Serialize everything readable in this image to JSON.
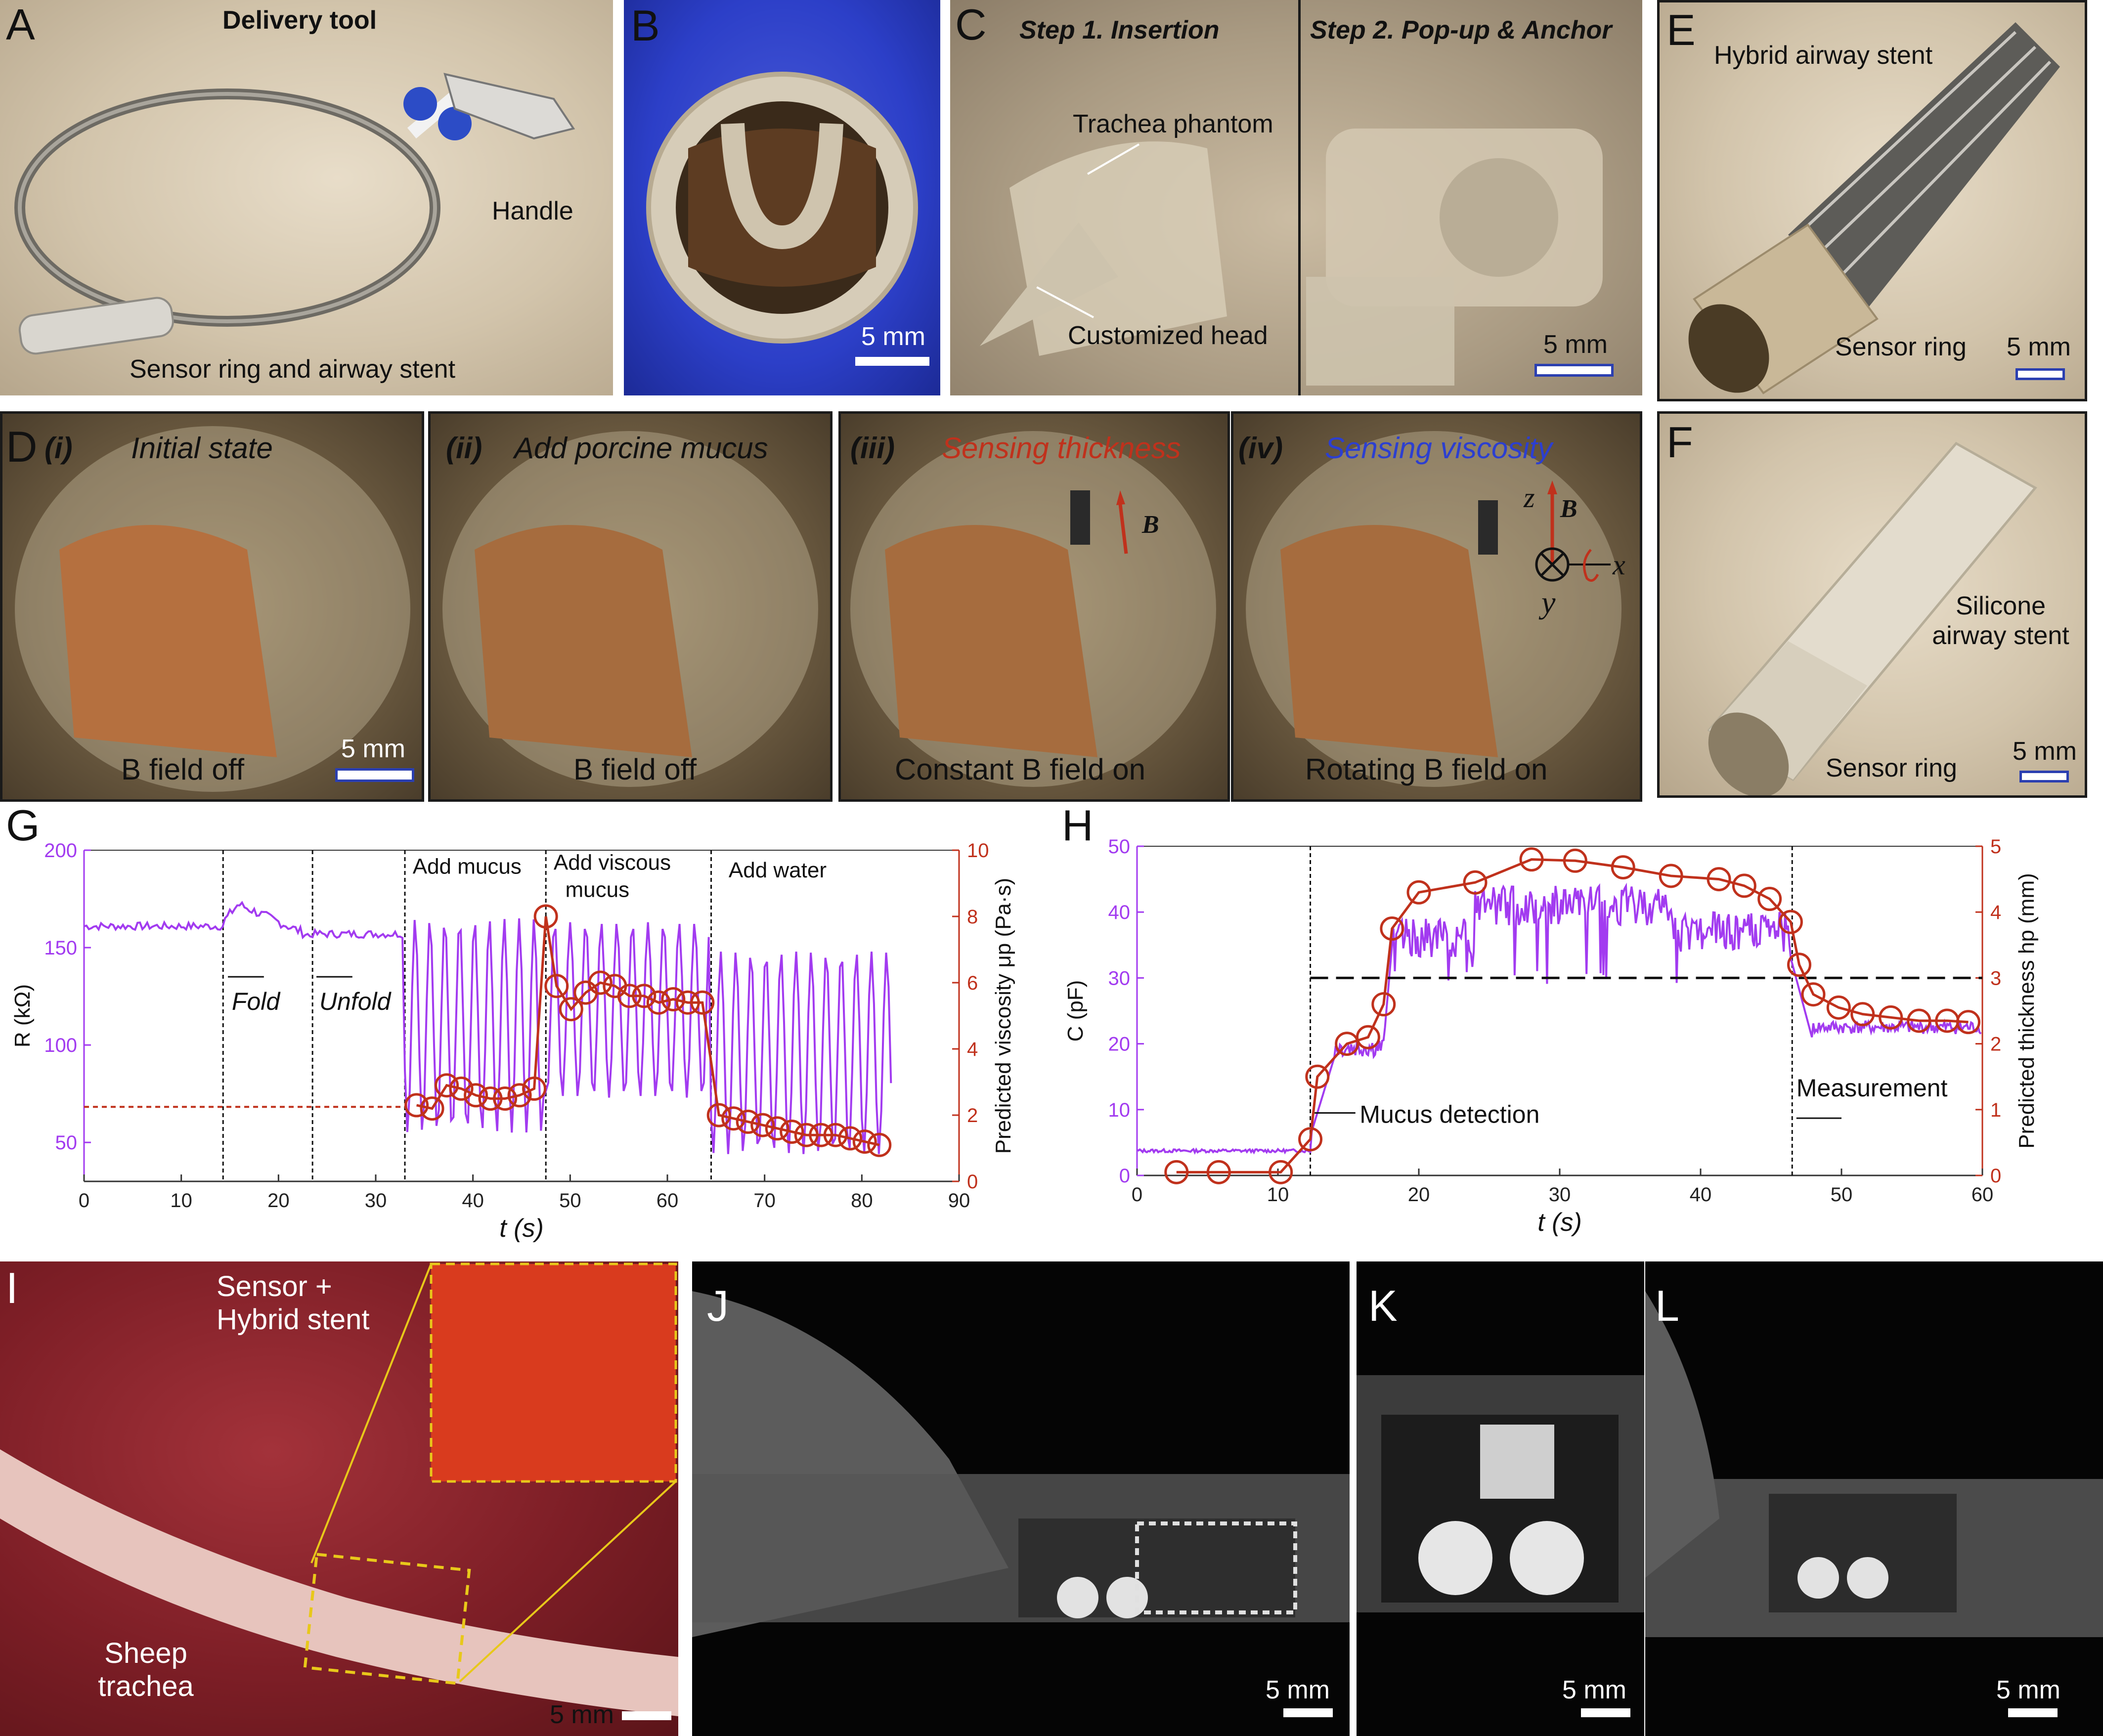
{
  "panels": {
    "A": {
      "label": "A",
      "title": "Delivery tool",
      "handle": "Handle",
      "sensor": "Sensor ring and airway stent"
    },
    "B": {
      "label": "B",
      "scale": "5 mm"
    },
    "C": {
      "label": "C",
      "step1": "Step 1. Insertion",
      "step2": "Step 2. Pop-up & Anchor",
      "phantom": "Trachea phantom",
      "head": "Customized head",
      "scale": "5 mm"
    },
    "D": {
      "label": "D",
      "sub": [
        {
          "num": "(i)",
          "title": "Initial state",
          "bottom": "B field off"
        },
        {
          "num": "(ii)",
          "title": "Add porcine mucus",
          "bottom": "B field off"
        },
        {
          "num": "(iii)",
          "title": "Sensing thickness",
          "bottom": "Constant B field on"
        },
        {
          "num": "(iv)",
          "title": "Sensing viscosity",
          "bottom": "Rotating B field on"
        }
      ],
      "scale": "5 mm",
      "b_symbol": "B",
      "axis_z": "z",
      "axis_y": "y",
      "axis_x": "x"
    },
    "E": {
      "label": "E",
      "stent": "Hybrid airway stent",
      "ring": "Sensor ring",
      "scale": "5 mm"
    },
    "F": {
      "label": "F",
      "stent": "Silicone airway stent",
      "ring": "Sensor ring",
      "scale": "5 mm"
    },
    "G": {
      "label": "G"
    },
    "H": {
      "label": "H"
    },
    "I": {
      "label": "I",
      "sensor": "Sensor + Hybrid stent",
      "trachea": "Sheep trachea",
      "scale": "5 mm"
    },
    "J": {
      "label": "J",
      "scale": "5 mm"
    },
    "K": {
      "label": "K",
      "scale": "5 mm"
    },
    "L": {
      "label": "L",
      "scale": "5 mm"
    }
  },
  "colors": {
    "purple": "#a23bf0",
    "red": "#c0311c",
    "black": "#111111"
  },
  "chart_data": [
    {
      "id": "G",
      "type": "line",
      "xlabel": "t (s)",
      "ylabel_left": "R (kΩ)",
      "ylabel_right": "Predicted viscosity μp (Pa·s)",
      "xlim": [
        0,
        90
      ],
      "ylim_left": [
        30,
        200
      ],
      "ylim_right": [
        0,
        10
      ],
      "xticks": [
        0,
        10,
        20,
        30,
        40,
        50,
        60,
        70,
        80,
        90
      ],
      "yticks_left": [
        50,
        100,
        150,
        200
      ],
      "yticks_right": [
        0,
        2,
        4,
        6,
        8,
        10
      ],
      "vlines": [
        14.3,
        23.5,
        33,
        47.5,
        64.5
      ],
      "annotations": [
        "Fold",
        "Unfold",
        "Add mucus",
        "Add viscous mucus",
        "Add water"
      ],
      "baseline_right": 2.25,
      "series": [
        {
          "axis": "right",
          "color": "#c0311c",
          "x": [
            34.2,
            35.8,
            37.3,
            38.8,
            40.3,
            41.8,
            43.3,
            44.8,
            46.3,
            47.5,
            48.6,
            50.1,
            51.6,
            53.1,
            54.6,
            56.1,
            57.6,
            59.1,
            60.6,
            62.1,
            63.6,
            65.3,
            66.8,
            68.3,
            69.8,
            71.3,
            72.8,
            74.3,
            75.8,
            77.3,
            78.8,
            80.3,
            81.8
          ],
          "y": [
            2.3,
            2.2,
            2.9,
            2.8,
            2.6,
            2.5,
            2.5,
            2.6,
            2.8,
            8.0,
            5.9,
            5.2,
            5.7,
            6.0,
            5.9,
            5.6,
            5.6,
            5.4,
            5.5,
            5.4,
            5.4,
            2.0,
            1.9,
            1.8,
            1.7,
            1.6,
            1.5,
            1.4,
            1.4,
            1.4,
            1.3,
            1.2,
            1.1
          ]
        }
      ]
    },
    {
      "id": "H",
      "type": "line",
      "xlabel": "t (s)",
      "ylabel_left": "C (pF)",
      "ylabel_right": "Predicted thickness hp (mm)",
      "xlim": [
        0,
        60
      ],
      "ylim_left": [
        0,
        50
      ],
      "ylim_right": [
        0,
        5
      ],
      "xticks": [
        0,
        10,
        20,
        30,
        40,
        50,
        60
      ],
      "yticks_left": [
        0,
        10,
        20,
        30,
        40,
        50
      ],
      "yticks_right": [
        0,
        1,
        2,
        3,
        4,
        5
      ],
      "vlines": [
        12.3,
        46.5
      ],
      "hline_right": 3.0,
      "annotations": [
        "Mucus detection",
        "Measurement"
      ],
      "series": [
        {
          "axis": "right",
          "color": "#c0311c",
          "x": [
            2.8,
            5.8,
            10.2,
            12.3,
            12.8,
            14.9,
            16.4,
            17.5,
            18.1,
            20.0,
            24.0,
            28.0,
            31.1,
            34.5,
            37.9,
            41.3,
            43.1,
            44.9,
            46.4,
            47.0,
            48.0,
            49.8,
            51.5,
            53.5,
            55.5,
            57.5,
            59.0
          ],
          "y": [
            0.05,
            0.05,
            0.05,
            0.55,
            1.5,
            2.0,
            2.1,
            2.6,
            3.75,
            4.3,
            4.45,
            4.8,
            4.78,
            4.68,
            4.55,
            4.5,
            4.4,
            4.2,
            3.85,
            3.2,
            2.75,
            2.55,
            2.45,
            2.4,
            2.35,
            2.35,
            2.33
          ]
        }
      ]
    }
  ]
}
